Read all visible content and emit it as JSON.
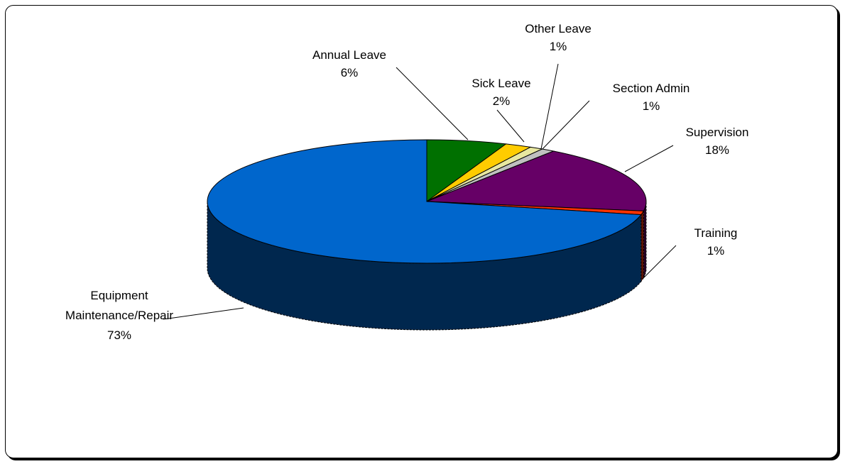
{
  "chart_data": {
    "type": "pie",
    "style": "3d",
    "title": "",
    "slices": [
      {
        "label": "Annual Leave",
        "value": 6,
        "pct_text": "6%",
        "color": "#007000"
      },
      {
        "label": "Sick Leave",
        "value": 2,
        "pct_text": "2%",
        "color": "#FFCC00"
      },
      {
        "label": "Other Leave",
        "value": 1,
        "pct_text": "1%",
        "color": "#E8E8A0"
      },
      {
        "label": "Section Admin",
        "value": 1,
        "pct_text": "1%",
        "color": "#C0C0C0"
      },
      {
        "label": "Supervision",
        "value": 18,
        "pct_text": "18%",
        "color": "#660066"
      },
      {
        "label": "Training",
        "value": 1,
        "pct_text": "1%",
        "color": "#FF3300"
      },
      {
        "label": "Equipment Maintenance/Repair",
        "value": 73,
        "pct_text": "73%",
        "color": "#0066CC"
      }
    ],
    "legend": "none",
    "data_labels": "outside with leader lines"
  }
}
